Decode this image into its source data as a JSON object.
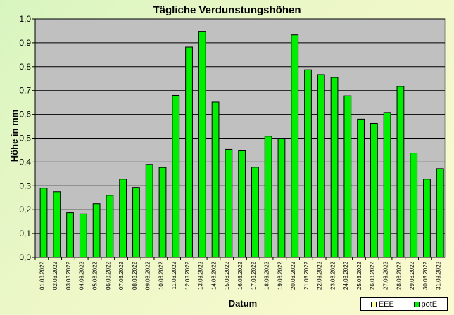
{
  "chart_data": {
    "type": "bar",
    "title": "Tägliche Verdunstungshöhen",
    "xlabel": "Datum",
    "ylabel": "Höhe in mm",
    "ylim": [
      0,
      1.0
    ],
    "yticks": [
      "0,0",
      "0,1",
      "0,2",
      "0,3",
      "0,4",
      "0,5",
      "0,6",
      "0,7",
      "0,8",
      "0,9",
      "1,0"
    ],
    "grid": true,
    "legend_position": "bottom-right",
    "categories": [
      "01.03.2022",
      "02.03.2022",
      "03.03.2022",
      "04.03.2022",
      "05.03.2022",
      "06.03.2022",
      "07.03.2022",
      "08.03.2022",
      "09.03.2022",
      "10.03.2022",
      "11.03.2022",
      "12.03.2022",
      "13.03.2022",
      "14.03.2022",
      "15.03.2022",
      "16.03.2022",
      "17.03.2022",
      "18.03.2022",
      "19.03.2022",
      "20.03.2022",
      "21.03.2022",
      "22.03.2022",
      "23.03.2022",
      "24.03.2022",
      "25.03.2022",
      "26.03.2022",
      "27.03.2022",
      "28.03.2022",
      "29.03.2022",
      "30.03.2022",
      "31.03.2022"
    ],
    "series": [
      {
        "name": "EEE",
        "color": "#ffffaa",
        "values": [
          0,
          0,
          0,
          0,
          0,
          0,
          0,
          0,
          0,
          0,
          0,
          0,
          0,
          0,
          0,
          0,
          0,
          0,
          0,
          0,
          0,
          0,
          0,
          0,
          0,
          0,
          0,
          0,
          0,
          0,
          0
        ]
      },
      {
        "name": "potE",
        "color": "#00ee00",
        "values": [
          0.29,
          0.275,
          0.187,
          0.182,
          0.225,
          0.26,
          0.328,
          0.293,
          0.39,
          0.377,
          0.68,
          0.882,
          0.948,
          0.652,
          0.453,
          0.447,
          0.378,
          0.508,
          0.5,
          0.933,
          0.787,
          0.767,
          0.755,
          0.678,
          0.58,
          0.562,
          0.608,
          0.717,
          0.438,
          0.328,
          0.372
        ]
      }
    ],
    "plot_background": "#c0c0c0"
  }
}
